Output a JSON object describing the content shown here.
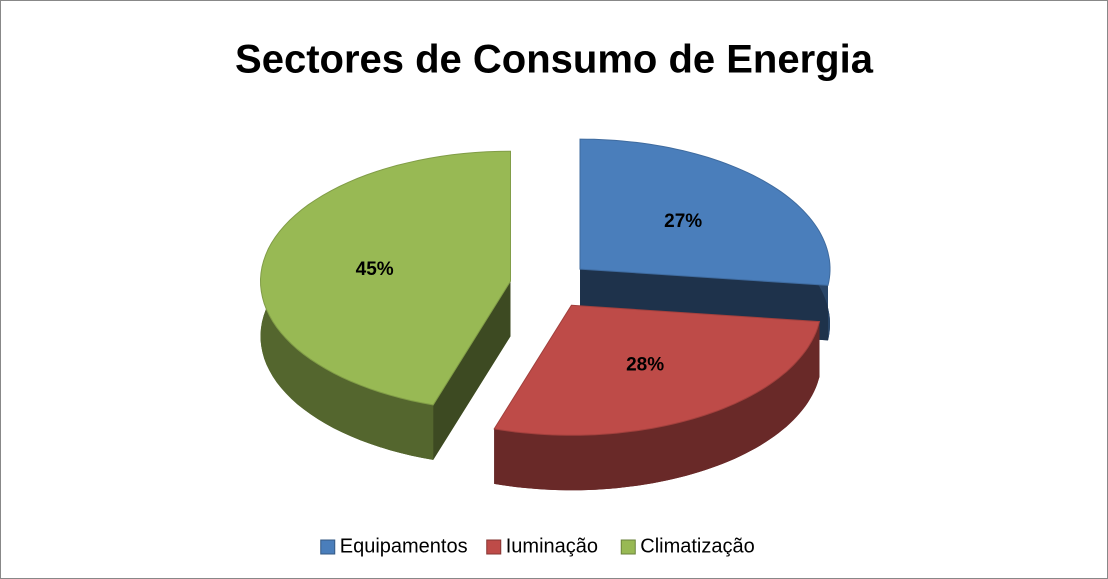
{
  "chart_data": {
    "type": "pie",
    "title": "Sectores de Consumo de Energia",
    "categories": [
      "Equipamentos",
      "Iuminação",
      "Climatização"
    ],
    "values": [
      27,
      28,
      45
    ],
    "value_labels": [
      "27%",
      "28%",
      "45%"
    ],
    "colors": [
      "#4a7ebb",
      "#be4b48",
      "#98b954"
    ],
    "legend": "bottom"
  }
}
